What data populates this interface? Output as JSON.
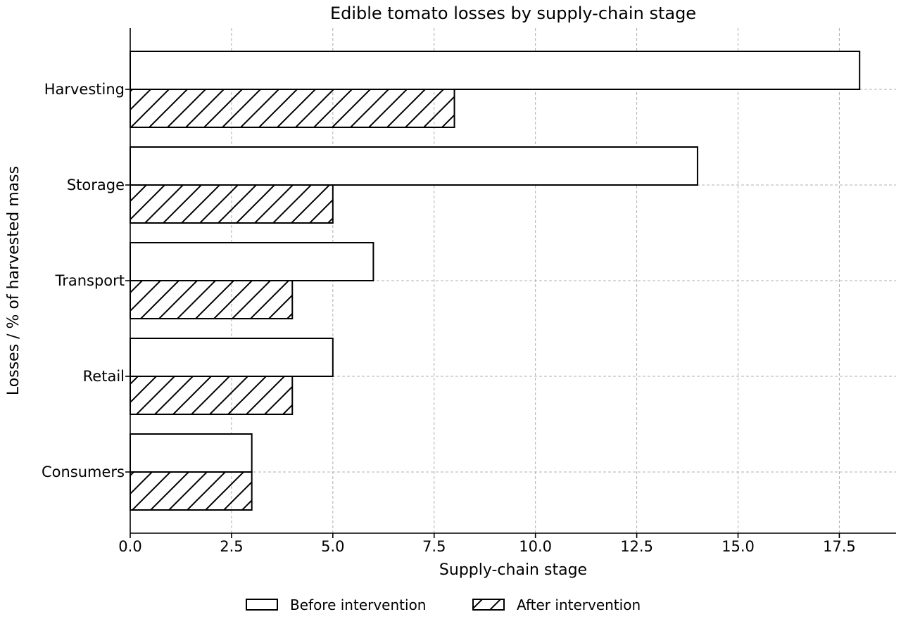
{
  "chart_data": {
    "type": "bar",
    "orientation": "horizontal",
    "title": "Edible tomato losses by supply-chain stage",
    "xlabel": "Supply-chain stage",
    "ylabel": "Losses / % of harvested mass",
    "categories": [
      "Harvesting",
      "Storage",
      "Transport",
      "Retail",
      "Consumers"
    ],
    "series": [
      {
        "name": "Before intervention",
        "values": [
          18,
          14,
          6,
          5,
          3
        ],
        "fill": "#ffffff",
        "pattern": "none"
      },
      {
        "name": "After intervention",
        "values": [
          8,
          5,
          4,
          4,
          3
        ],
        "fill": "#ffffff",
        "pattern": "diagonal-hatch"
      }
    ],
    "xlim": [
      0,
      18.9
    ],
    "xticks": [
      "0.0",
      "2.5",
      "5.0",
      "7.5",
      "10.0",
      "12.5",
      "15.0",
      "17.5"
    ],
    "xtick_values": [
      0,
      2.5,
      5,
      7.5,
      10,
      12.5,
      15,
      17.5
    ],
    "grid": true,
    "legend_position": "bottom-center",
    "colors": {
      "edge": "#000000",
      "grid": "#b0b0b0"
    }
  }
}
